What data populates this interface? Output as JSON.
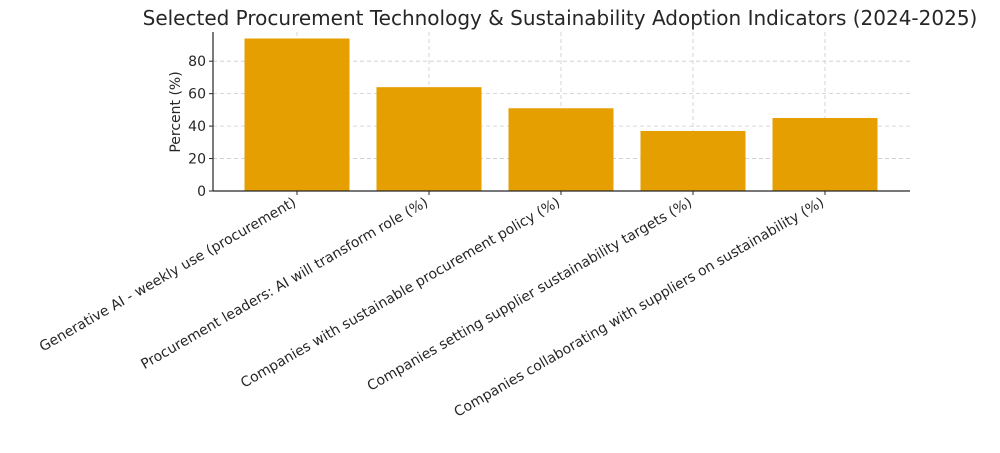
{
  "chart_data": {
    "type": "bar",
    "title": "Selected Procurement Technology & Sustainability Adoption Indicators (2024-2025)",
    "xlabel": "",
    "ylabel": "Percent (%)",
    "categories": [
      "Generative AI - weekly use (procurement)",
      "Procurement leaders: AI will transform role (%)",
      "Companies with sustainable procurement policy (%)",
      "Companies setting supplier sustainability targets (%)",
      "Companies collaborating with suppliers on sustainability (%)"
    ],
    "values": [
      94,
      64,
      51,
      37,
      45
    ],
    "ylim": [
      0,
      98
    ],
    "yticks": [
      0,
      20,
      40,
      60,
      80
    ],
    "bar_color": "#E69F00",
    "grid": true
  }
}
